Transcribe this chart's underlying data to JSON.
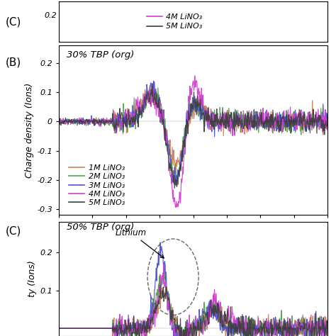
{
  "panel_B_label": "(B)",
  "panel_C_label": "(C)",
  "title_B": "30% TBP (org)",
  "title_C": "50% TBP (org)",
  "ylabel_B": "Charge density (Ions)",
  "ylabel_C": "ty (Ions)",
  "ylim_B": [
    -0.32,
    0.26
  ],
  "yticks_B": [
    -0.3,
    -0.2,
    -0.1,
    0.0,
    0.1,
    0.2
  ],
  "ytick_labels_B": [
    "-0.3",
    "-0.2",
    "-0.1",
    "0",
    "0.1",
    "0.2"
  ],
  "ylim_C": [
    -0.02,
    0.28
  ],
  "yticks_C": [
    0.1,
    0.2
  ],
  "ytick_labels_C": [
    "0.1",
    "0.2"
  ],
  "colors": {
    "1M": "#d08060",
    "2M": "#50a050",
    "3M": "#5050d0",
    "4M": "#d040d0",
    "5M": "#404040"
  },
  "legend_labels": [
    "1M LiNO₃",
    "2M LiNO₃",
    "3M LiNO₃",
    "4M LiNO₃",
    "5M LiNO₃"
  ],
  "top_legend": [
    "4M LiNO₃",
    "5M LiNO₃"
  ],
  "top_ytick": "0.2",
  "lithium_label": "Lithium"
}
